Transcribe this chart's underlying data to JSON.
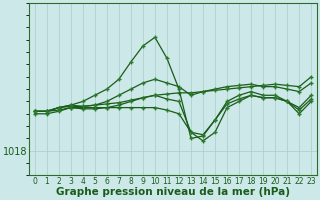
{
  "xlabel": "Graphe pression niveau de la mer (hPa)",
  "background_color": "#cce8e8",
  "plot_bg_color": "#cce8e8",
  "grid_color": "#aacccc",
  "line_color": "#1a5c1a",
  "marker_color": "#2a7a2a",
  "x_ticks": [
    0,
    1,
    2,
    3,
    4,
    5,
    6,
    7,
    8,
    9,
    10,
    11,
    12,
    13,
    14,
    15,
    16,
    17,
    18,
    19,
    20,
    21,
    22,
    23
  ],
  "series": [
    [
      1021.2,
      1021.2,
      1021.5,
      1021.6,
      1021.6,
      1021.7,
      1021.8,
      1021.9,
      1022.1,
      1022.3,
      1022.5,
      1022.6,
      1022.7,
      1022.7,
      1022.8,
      1022.9,
      1023.0,
      1023.1,
      1023.2,
      1023.3,
      1023.4,
      1023.3,
      1023.2,
      1024.0
    ],
    [
      1021.2,
      1021.2,
      1021.5,
      1021.7,
      1021.6,
      1021.7,
      1022.0,
      1022.5,
      1023.0,
      1023.5,
      1023.8,
      1023.5,
      1023.2,
      1022.5,
      1022.8,
      1023.0,
      1023.2,
      1023.3,
      1023.4,
      1023.2,
      1023.2,
      1023.0,
      1022.8,
      1023.5
    ],
    [
      1021.2,
      1021.2,
      1021.5,
      1021.7,
      1022.0,
      1022.5,
      1023.0,
      1023.8,
      1025.2,
      1026.5,
      1027.2,
      1025.5,
      1023.0,
      1019.0,
      1019.2,
      1020.5,
      1022.0,
      1022.5,
      1022.8,
      1022.5,
      1022.5,
      1022.0,
      1021.0,
      1022.0
    ],
    [
      1021.0,
      1021.0,
      1021.2,
      1021.5,
      1021.5,
      1021.5,
      1021.5,
      1021.5,
      1021.5,
      1021.5,
      1021.5,
      1021.3,
      1021.0,
      1019.5,
      1018.8,
      1019.5,
      1021.5,
      1022.0,
      1022.5,
      1022.3,
      1022.3,
      1022.0,
      1021.5,
      1022.5
    ],
    [
      1021.2,
      1021.2,
      1021.3,
      1021.5,
      1021.4,
      1021.4,
      1021.5,
      1021.7,
      1022.0,
      1022.3,
      1022.5,
      1022.2,
      1022.0,
      1019.5,
      1019.3,
      1020.5,
      1021.8,
      1022.2,
      1022.5,
      1022.3,
      1022.3,
      1022.0,
      1021.3,
      1022.2
    ]
  ],
  "ylim": [
    1016.0,
    1030.0
  ],
  "yticks": [
    1018
  ],
  "figsize": [
    3.2,
    2.0
  ],
  "dpi": 100,
  "xlabel_fontsize": 7.5,
  "tick_fontsize": 5.5,
  "linewidth": 0.9,
  "markersize": 3.0
}
